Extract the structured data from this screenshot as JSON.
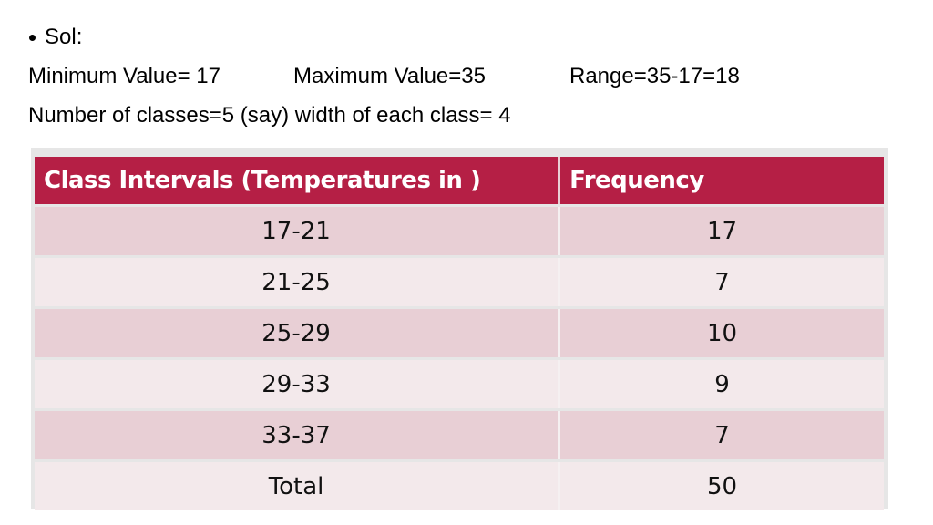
{
  "slide": {
    "bullet": "Sol:",
    "line2": {
      "min": "Minimum Value= 17",
      "max": "Maximum Value=35",
      "range": "Range=35-17=18"
    },
    "line3": "Number of classes=5 (say) width of each class= 4"
  },
  "table": {
    "headers": [
      "Class Intervals (Temperatures in )",
      "Frequency"
    ],
    "rows": [
      {
        "interval": "17-21",
        "frequency": "17"
      },
      {
        "interval": "21-25",
        "frequency": "7"
      },
      {
        "interval": "25-29",
        "frequency": "10"
      },
      {
        "interval": "29-33",
        "frequency": "9"
      },
      {
        "interval": "33-37",
        "frequency": "7"
      },
      {
        "interval": "Total",
        "frequency": "50"
      }
    ],
    "colors": {
      "header": "#b51f45",
      "row_dark": "#e8cfd5",
      "row_light": "#f3e9eb"
    }
  }
}
